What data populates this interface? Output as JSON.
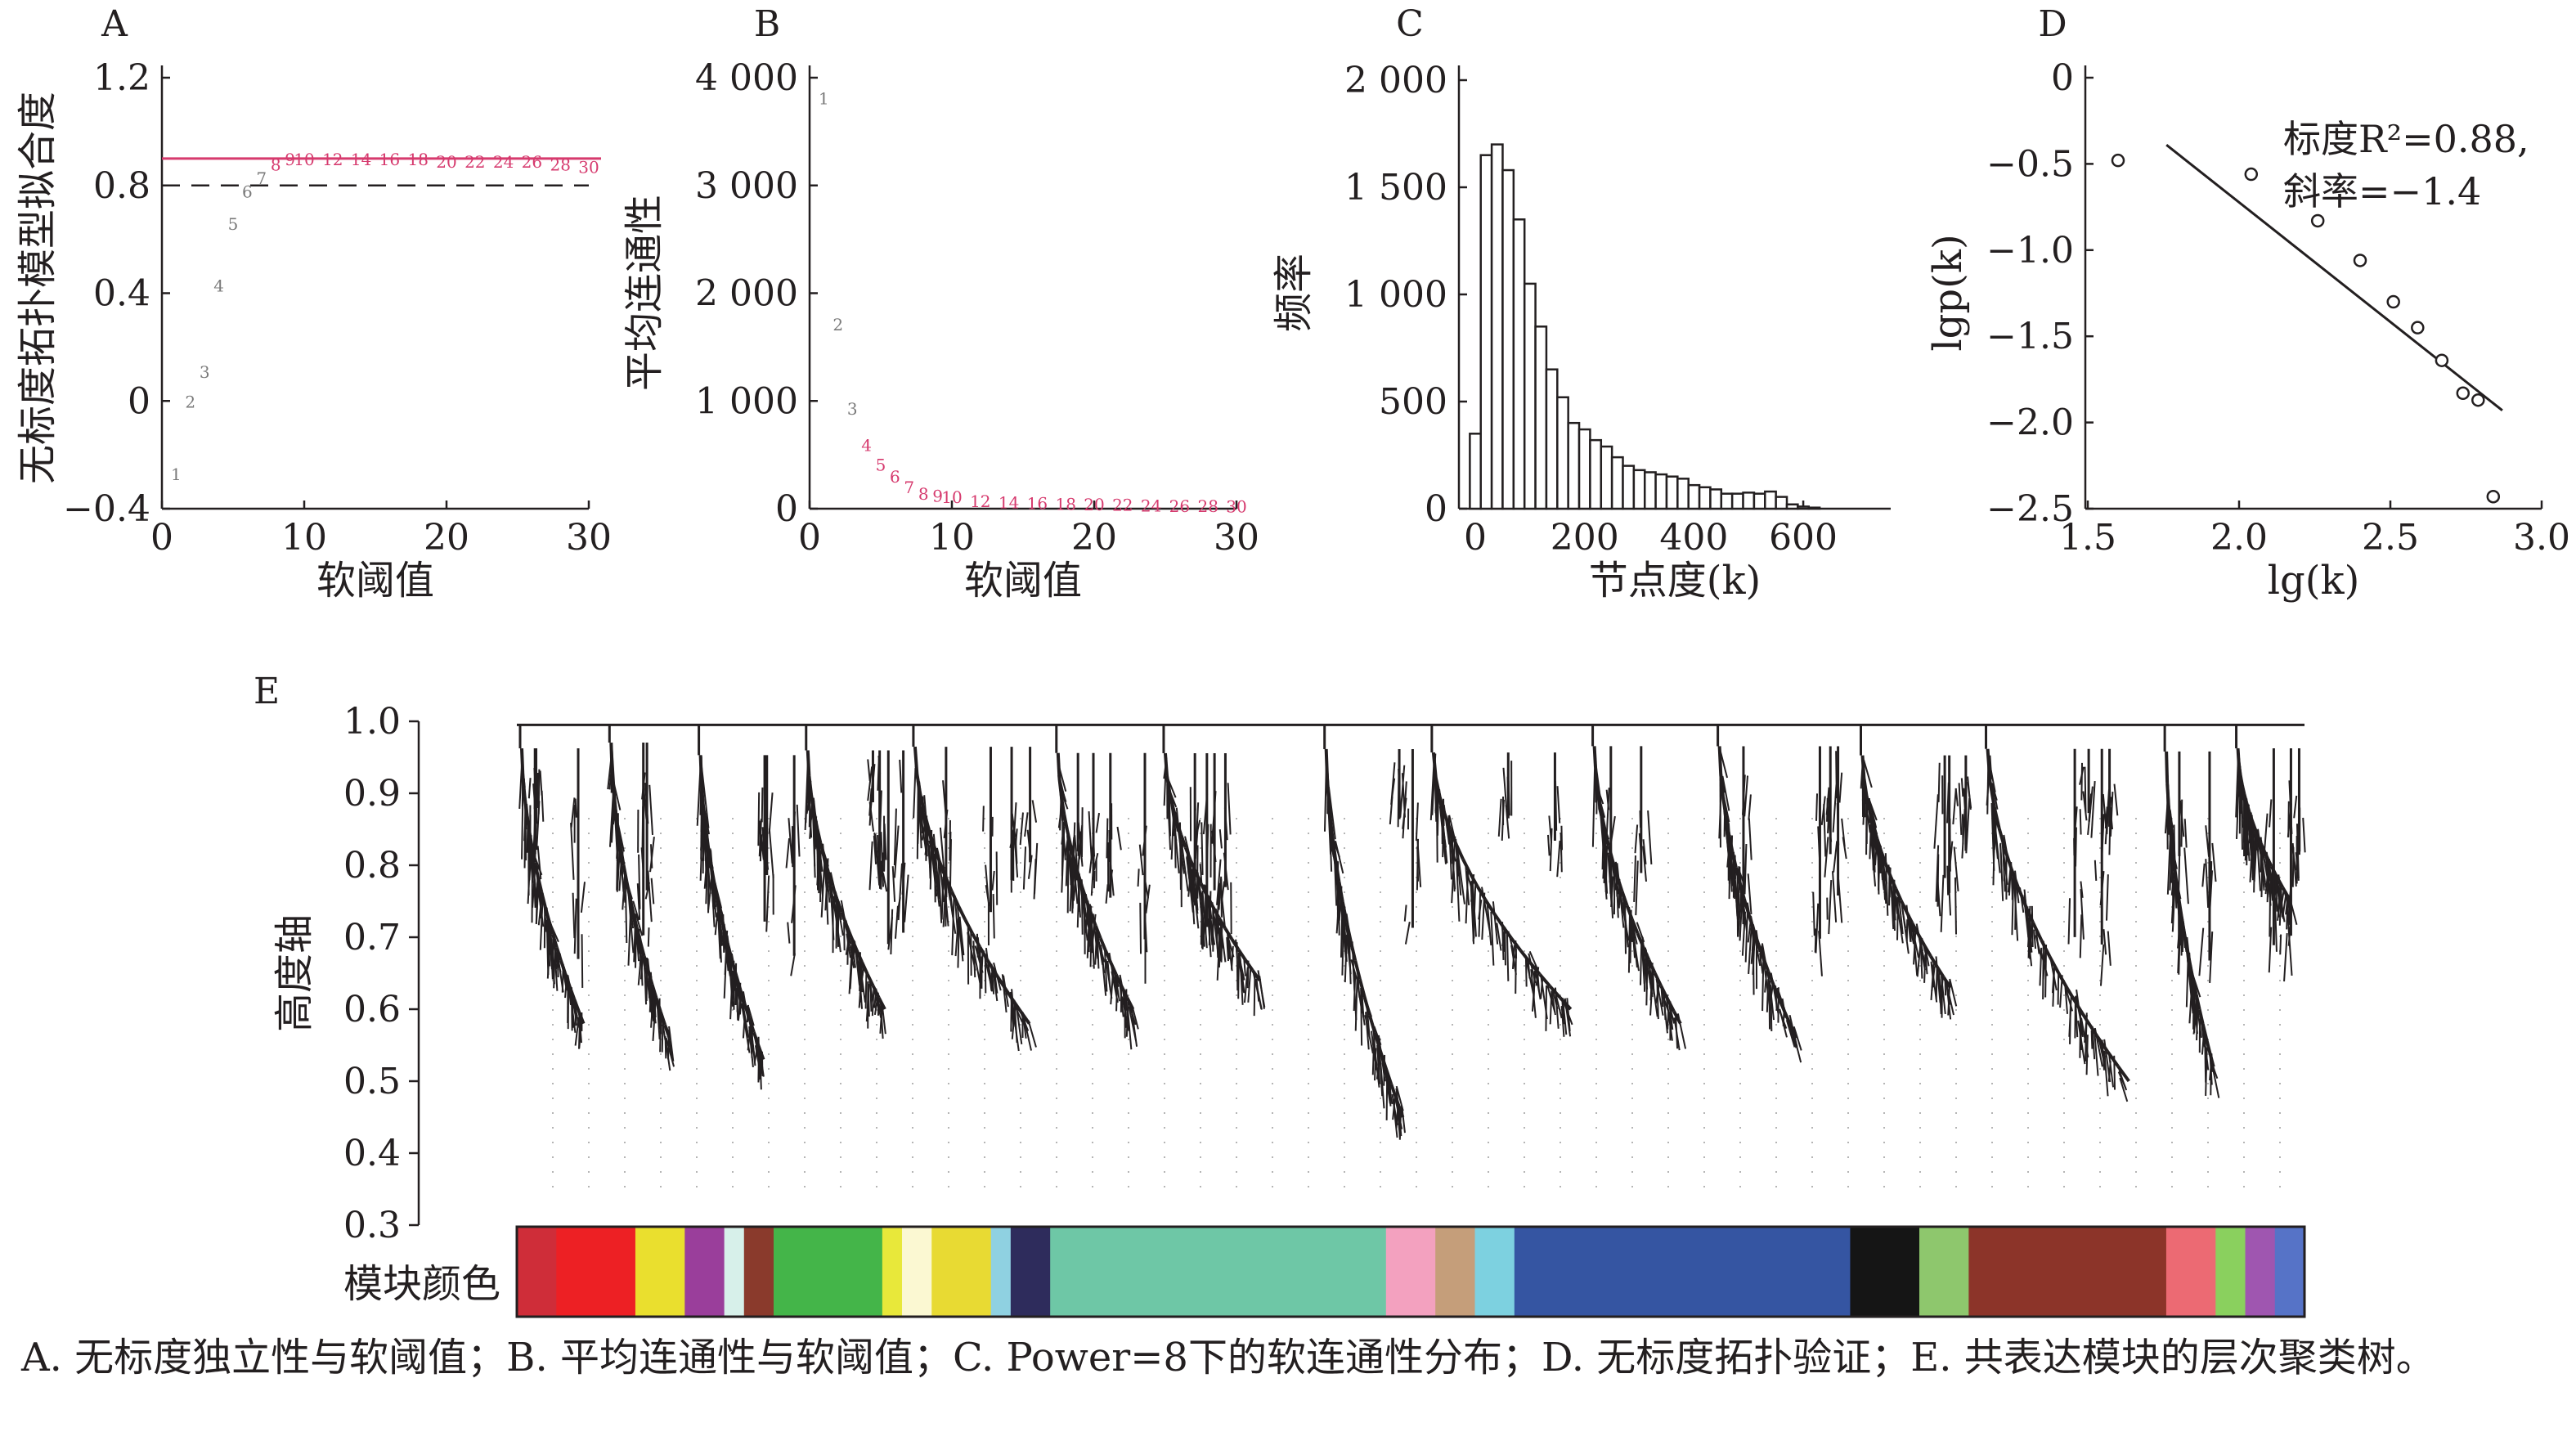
{
  "panels": [
    {
      "letter": "A",
      "xlabel": "软阈值",
      "ylabel": "无标度拓扑模型拟合度",
      "xticks": [
        "0",
        "10",
        "20",
        "30"
      ],
      "yticks": [
        "1.2",
        "0.8",
        "0.4",
        "0",
        "−0.4"
      ]
    },
    {
      "letter": "B",
      "xlabel": "软阈值",
      "ylabel": "平均连通性",
      "xticks": [
        "0",
        "10",
        "20",
        "30"
      ],
      "yticks": [
        "4 000",
        "3 000",
        "2 000",
        "1 000",
        "0"
      ]
    },
    {
      "letter": "C",
      "xlabel": "节点度(k)",
      "ylabel": "频率",
      "xticks": [
        "0",
        "200",
        "400",
        "600"
      ],
      "yticks": [
        "2 000",
        "1 500",
        "1 000",
        "500",
        "0"
      ]
    },
    {
      "letter": "D",
      "xlabel": "lg(k)",
      "ylabel": "lgp(k)",
      "xticks": [
        "1.5",
        "2.0",
        "2.5",
        "3.0"
      ],
      "yticks": [
        "0",
        "−0.5",
        "−1.0",
        "−1.5",
        "−2.0",
        "−2.5"
      ],
      "annotation_line1": "标度R²=0.88,",
      "annotation_line2": "斜率=−1.4"
    },
    {
      "letter": "E",
      "ylabel": "高度轴",
      "yticks": [
        "1.0",
        "0.9",
        "0.8",
        "0.7",
        "0.6",
        "0.5",
        "0.4",
        "0.3"
      ],
      "color_bar_label": "模块颜色"
    }
  ],
  "caption": "A. 无标度独立性与软阈值；B. 平均连通性与软阈值；C. Power=8下的软连通性分布；D. 无标度拓扑验证；E. 共表达模块的层次聚类树。",
  "chart_data": [
    {
      "panel": "A",
      "type": "scatter",
      "xlabel": "软阈值",
      "ylabel": "无标度拓扑模型拟合度",
      "xlim": [
        0,
        30
      ],
      "ylim": [
        -0.4,
        1.2
      ],
      "points_as_text_labels": true,
      "x": [
        1,
        2,
        3,
        4,
        5,
        6,
        7,
        8,
        9,
        10,
        12,
        14,
        16,
        18,
        20,
        22,
        24,
        26,
        28,
        30
      ],
      "y": [
        -0.27,
        0.0,
        0.11,
        0.43,
        0.66,
        0.78,
        0.83,
        0.88,
        0.9,
        0.9,
        0.9,
        0.9,
        0.9,
        0.9,
        0.89,
        0.89,
        0.89,
        0.89,
        0.88,
        0.87
      ],
      "highlight_from_x": 8,
      "reference_lines": [
        {
          "y": 0.9,
          "style": "solid",
          "color": "#d63a6e"
        },
        {
          "y": 0.8,
          "style": "dashed",
          "color": "#231f20"
        }
      ]
    },
    {
      "panel": "B",
      "type": "scatter",
      "xlabel": "软阈值",
      "ylabel": "平均连通性",
      "xlim": [
        0,
        30
      ],
      "ylim": [
        0,
        4000
      ],
      "points_as_text_labels": true,
      "x": [
        1,
        2,
        3,
        4,
        5,
        6,
        7,
        8,
        9,
        10,
        12,
        14,
        16,
        18,
        20,
        22,
        24,
        26,
        28,
        30
      ],
      "y": [
        3800,
        1700,
        920,
        580,
        400,
        290,
        190,
        130,
        110,
        100,
        60,
        50,
        40,
        35,
        30,
        25,
        20,
        15,
        15,
        10
      ],
      "highlight_from_x": 4
    },
    {
      "panel": "C",
      "type": "bar",
      "xlabel": "节点度(k)",
      "ylabel": "频率",
      "xlim": [
        -30,
        760
      ],
      "ylim": [
        0,
        2000
      ],
      "bin_width": 20,
      "bin_start": -10,
      "values": [
        350,
        1650,
        1700,
        1580,
        1350,
        1050,
        850,
        650,
        520,
        400,
        370,
        320,
        290,
        240,
        200,
        180,
        170,
        160,
        150,
        140,
        110,
        100,
        90,
        70,
        70,
        75,
        70,
        80,
        55,
        20,
        10,
        5
      ]
    },
    {
      "panel": "D",
      "type": "scatter",
      "xlabel": "lg(k)",
      "ylabel": "lgp(k)",
      "xlim": [
        1.5,
        3.0
      ],
      "ylim": [
        -2.5,
        0
      ],
      "x": [
        1.6,
        2.04,
        2.26,
        2.4,
        2.51,
        2.59,
        2.67,
        2.74,
        2.79,
        2.84
      ],
      "y": [
        -0.48,
        -0.56,
        -0.83,
        -1.06,
        -1.3,
        -1.45,
        -1.64,
        -1.83,
        -1.87,
        -2.43
      ],
      "fit_line": {
        "x": [
          1.76,
          2.87
        ],
        "y": [
          -0.39,
          -1.93
        ]
      },
      "r_squared": 0.88,
      "slope": -1.4
    },
    {
      "panel": "E",
      "type": "dendrogram",
      "ylabel": "高度轴",
      "ylim": [
        0.3,
        1.0
      ],
      "module_colors": [
        "#cf2d39",
        "#ed2024",
        "#eadf2e",
        "#9a3e9b",
        "#d7f0ea",
        "#8a3a2c",
        "#44b549",
        "#e8e83a",
        "#fbf8d2",
        "#e8da33",
        "#8fd1e1",
        "#2e2c5c",
        "#6ec7a6",
        "#f3a1bf",
        "#c59e7a",
        "#7dd1e0",
        "#3555a2",
        "#151515",
        "#8ec76d",
        "#8c3429",
        "#ec6a73",
        "#8ad05e",
        "#9f56b0",
        "#5673c7"
      ],
      "module_fractions": [
        0.02,
        0.04,
        0.025,
        0.02,
        0.01,
        0.015,
        0.055,
        0.01,
        0.015,
        0.03,
        0.01,
        0.02,
        0.17,
        0.025,
        0.02,
        0.02,
        0.17,
        0.035,
        0.025,
        0.1,
        0.025,
        0.015,
        0.015,
        0.015
      ],
      "clusters": [
        {
          "start": 0.0,
          "end": 0.05,
          "min_height": 0.58
        },
        {
          "start": 0.05,
          "end": 0.1,
          "min_height": 0.56
        },
        {
          "start": 0.1,
          "end": 0.16,
          "min_height": 0.53
        },
        {
          "start": 0.16,
          "end": 0.22,
          "min_height": 0.6
        },
        {
          "start": 0.22,
          "end": 0.3,
          "min_height": 0.58
        },
        {
          "start": 0.3,
          "end": 0.36,
          "min_height": 0.6
        },
        {
          "start": 0.36,
          "end": 0.45,
          "min_height": 0.64
        },
        {
          "start": 0.45,
          "end": 0.51,
          "min_height": 0.45
        },
        {
          "start": 0.51,
          "end": 0.6,
          "min_height": 0.6
        },
        {
          "start": 0.6,
          "end": 0.67,
          "min_height": 0.58
        },
        {
          "start": 0.67,
          "end": 0.75,
          "min_height": 0.56
        },
        {
          "start": 0.75,
          "end": 0.82,
          "min_height": 0.63
        },
        {
          "start": 0.82,
          "end": 0.92,
          "min_height": 0.5
        },
        {
          "start": 0.92,
          "end": 0.96,
          "min_height": 0.52
        },
        {
          "start": 0.96,
          "end": 1.0,
          "min_height": 0.75
        }
      ]
    }
  ]
}
